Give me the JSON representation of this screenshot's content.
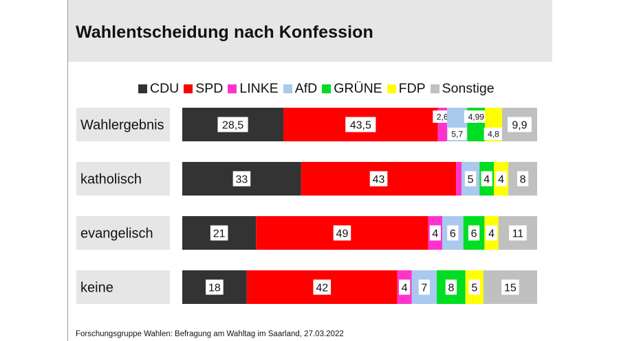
{
  "title": "Wahlentscheidung nach Konfession",
  "source": "Forschungsgruppe Wahlen: Befragung am Wahltag im Saarland, 27.03.2022",
  "chart_data": {
    "type": "bar",
    "orientation": "horizontal",
    "stacked": true,
    "title": "Wahlentscheidung nach Konfession",
    "categories": [
      "Wahlergebnis",
      "katholisch",
      "evangelisch",
      "keine"
    ],
    "series": [
      {
        "name": "CDU",
        "color": "#333333",
        "values": [
          28.5,
          33,
          21,
          18
        ],
        "labels": [
          "28,5",
          "33",
          "21",
          "18"
        ]
      },
      {
        "name": "SPD",
        "color": "#ff0000",
        "values": [
          43.5,
          43,
          49,
          42
        ],
        "labels": [
          "43,5",
          "43",
          "49",
          "42"
        ]
      },
      {
        "name": "LINKE",
        "color": "#ff33cc",
        "values": [
          2.6,
          1.5,
          4,
          4
        ],
        "labels": [
          "2,6",
          "",
          "4",
          "4"
        ]
      },
      {
        "name": "AfD",
        "color": "#a9c9ee",
        "values": [
          5.7,
          5,
          6,
          7
        ],
        "labels": [
          "5,7",
          "5",
          "6",
          "7"
        ]
      },
      {
        "name": "GRÜNE",
        "color": "#00dd22",
        "values": [
          4.99,
          4,
          6,
          8
        ],
        "labels": [
          "4,99",
          "4",
          "6",
          "8"
        ]
      },
      {
        "name": "FDP",
        "color": "#ffff00",
        "values": [
          4.8,
          4,
          4,
          5
        ],
        "labels": [
          "4,8",
          "4",
          "4",
          "5"
        ]
      },
      {
        "name": "Sonstige",
        "color": "#c0c0c0",
        "values": [
          9.9,
          8,
          11,
          15
        ],
        "labels": [
          "9,9",
          "8",
          "11",
          "15"
        ]
      }
    ],
    "xlim": [
      0,
      100
    ],
    "legend": "top",
    "grid": false
  }
}
